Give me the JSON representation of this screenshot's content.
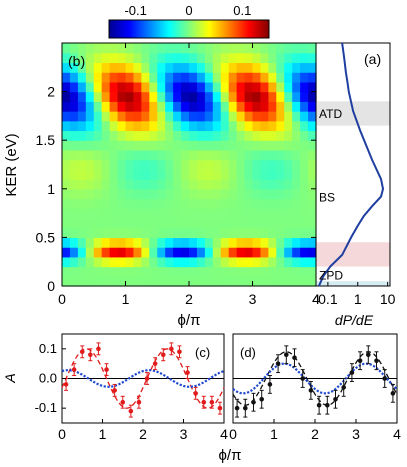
{
  "chart_data": [
    {
      "panel": "(b)",
      "type": "heatmap",
      "xlabel": "ϕ/π",
      "ylabel": "KER (eV)",
      "xlim": [
        0,
        4
      ],
      "ylim": [
        0,
        2.5
      ],
      "xticks": [
        "0",
        "1",
        "2",
        "3",
        "4"
      ],
      "yticks": [
        "0",
        "0.5",
        "1",
        "1.5",
        "2"
      ],
      "colorbar": {
        "range": [
          -0.15,
          0.15
        ],
        "ticks": [
          "-0.1",
          "0",
          "0.1"
        ],
        "colormap": "jet"
      },
      "features": [
        {
          "ker_range": [
            1.6,
            2.3
          ],
          "phi_max": [
            1.0,
            3.0
          ],
          "phi_min": [
            0.15,
            2.15
          ],
          "amplitude": 0.14,
          "tilt": "max shifts to larger ϕ as KER decreases"
        },
        {
          "ker_range": [
            0.25,
            0.45
          ],
          "phi_max": [
            0.9,
            2.9
          ],
          "phi_min": [
            1.9,
            3.9
          ],
          "amplitude": 0.12
        }
      ]
    },
    {
      "panel": "(a)",
      "type": "line",
      "xlabel": "dP/dE",
      "xscale": "log",
      "xticks": [
        "0.1",
        "1",
        "10"
      ],
      "ylim": [
        0,
        2.5
      ],
      "annotations": [
        {
          "text": "ATD",
          "ker": 1.78,
          "band": [
            1.65,
            1.9
          ],
          "color": "#e4e4e4"
        },
        {
          "text": "BS",
          "ker": 0.92,
          "band": null
        },
        {
          "text": "ZPD",
          "ker": 0.12,
          "band": [
            0.0,
            0.05
          ],
          "color": "#d6ecf3"
        },
        {
          "text": "",
          "ker": 0.33,
          "band": [
            0.2,
            0.45
          ],
          "color": "#f5d8da"
        }
      ],
      "series": [
        {
          "x": [
            0.05,
            0.07,
            0.12,
            0.3,
            0.6,
            1.0,
            1.6,
            3.0,
            6.0,
            7.0,
            6.0,
            3.0,
            1.2,
            0.7,
            0.5,
            0.45,
            0.4,
            0.35,
            0.3
          ],
          "y": [
            0.0,
            0.1,
            0.2,
            0.32,
            0.5,
            0.62,
            0.72,
            0.82,
            0.92,
            1.0,
            1.1,
            1.3,
            1.6,
            1.8,
            2.0,
            2.1,
            2.2,
            2.35,
            2.5
          ]
        }
      ]
    },
    {
      "panel": "(c)",
      "type": "scatter",
      "xlabel": "ϕ/π",
      "ylabel": "A",
      "xlim": [
        0,
        4
      ],
      "ylim": [
        -0.15,
        0.15
      ],
      "xticks": [
        "0",
        "1",
        "2",
        "3",
        "4"
      ],
      "yticks": [
        "0.1",
        "0.0",
        "-0.1"
      ],
      "series": [
        {
          "color": "#e11b1b",
          "x": [
            0.1,
            0.3,
            0.5,
            0.7,
            0.9,
            1.1,
            1.3,
            1.5,
            1.7,
            1.9,
            2.1,
            2.3,
            2.5,
            2.7,
            2.9,
            3.1,
            3.3,
            3.5,
            3.7,
            3.9
          ],
          "y": [
            -0.02,
            0.03,
            0.09,
            0.08,
            0.1,
            0.03,
            -0.04,
            -0.08,
            -0.11,
            -0.08,
            0.0,
            0.05,
            0.08,
            0.1,
            0.09,
            0.02,
            -0.05,
            -0.08,
            -0.08,
            -0.1
          ],
          "yerr": 0.02
        }
      ],
      "fits": [
        {
          "style": "dashed",
          "color": "#e11b1b",
          "amplitude": 0.1,
          "phase_max": 0.6
        },
        {
          "style": "dotted",
          "color": "#1f49d0",
          "amplitude": 0.028,
          "phase_max": 0.15
        }
      ]
    },
    {
      "panel": "(d)",
      "type": "scatter",
      "xlabel": "ϕ/π",
      "xlim": [
        0,
        4
      ],
      "ylim": [
        -0.15,
        0.15
      ],
      "xticks": [
        "0",
        "1",
        "2",
        "3",
        "4"
      ],
      "series": [
        {
          "color": "#111111",
          "x": [
            0.1,
            0.3,
            0.5,
            0.7,
            0.9,
            1.1,
            1.3,
            1.5,
            1.7,
            1.9,
            2.1,
            2.3,
            2.5,
            2.7,
            2.9,
            3.1,
            3.3,
            3.5,
            3.7,
            3.9
          ],
          "y": [
            -0.1,
            -0.1,
            -0.08,
            -0.07,
            -0.02,
            0.05,
            0.08,
            0.07,
            0.0,
            -0.04,
            -0.09,
            -0.09,
            -0.07,
            -0.03,
            0.02,
            0.06,
            0.08,
            0.06,
            0.0,
            -0.05
          ],
          "yerr": 0.03
        }
      ],
      "fits": [
        {
          "style": "dashed",
          "color": "#111111",
          "amplitude": 0.09,
          "phase_max": 1.3
        },
        {
          "style": "dotted",
          "color": "#1f49d0",
          "amplitude": 0.05,
          "phase_max": 1.25
        }
      ]
    }
  ]
}
